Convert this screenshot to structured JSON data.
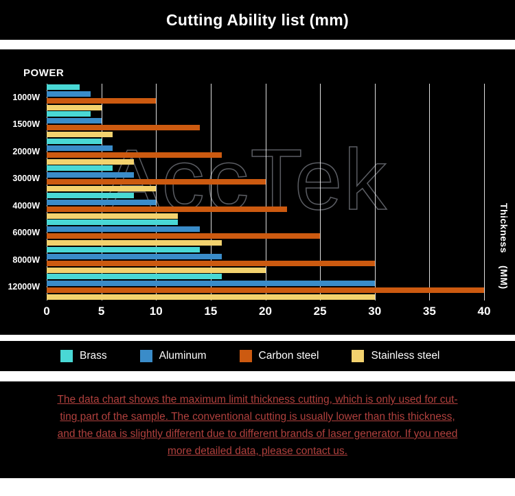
{
  "title": "Cutting Ability list (mm)",
  "watermark": "AccTek",
  "axis": {
    "power_label": "POWER",
    "thickness_label_1": "Thickness",
    "thickness_label_2": "(MM)",
    "x_ticks": [
      0,
      5,
      10,
      15,
      20,
      25,
      30,
      35,
      40
    ]
  },
  "legend": [
    {
      "label": "Brass",
      "color": "#49d8d5"
    },
    {
      "label": "Aluminum",
      "color": "#3a8cc9"
    },
    {
      "label": "Carbon steel",
      "color": "#cc5a10"
    },
    {
      "label": "Stainless steel",
      "color": "#f3d26e"
    }
  ],
  "chart_data": {
    "type": "bar",
    "orientation": "horizontal",
    "title": "Cutting Ability list (mm)",
    "xlabel": "Thickness (MM)",
    "ylabel": "POWER",
    "xlim": [
      0,
      40
    ],
    "grid": "vertical",
    "legend_position": "bottom",
    "categories": [
      "1000W",
      "1500W",
      "2000W",
      "3000W",
      "4000W",
      "6000W",
      "8000W",
      "12000W"
    ],
    "series": [
      {
        "name": "Brass",
        "color": "#49d8d5",
        "values": [
          3,
          4,
          5,
          6,
          8,
          12,
          14,
          16
        ]
      },
      {
        "name": "Aluminum",
        "color": "#3a8cc9",
        "values": [
          4,
          5,
          6,
          8,
          10,
          14,
          16,
          30
        ]
      },
      {
        "name": "Carbon steel",
        "color": "#cc5a10",
        "values": [
          10,
          14,
          16,
          20,
          22,
          25,
          30,
          40
        ]
      },
      {
        "name": "Stainless steel",
        "color": "#f3d26e",
        "values": [
          5,
          6,
          8,
          10,
          12,
          16,
          20,
          30
        ]
      }
    ]
  },
  "footer": {
    "lines": [
      "The data chart shows the maximum limit thickness cutting, which is only used for cut-",
      "ting part of the sample. The conventional cutting is usually lower than this thickness,",
      "and the data is slightly different due to different brands of laser generator. If you need",
      "more detailed data, please contact us."
    ]
  }
}
